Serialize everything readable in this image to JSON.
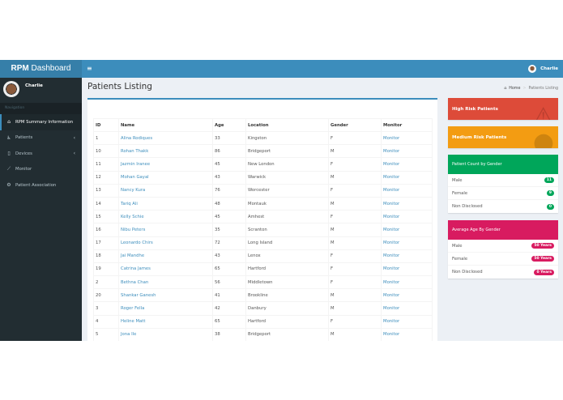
{
  "header": {
    "logo_bold": "RPM",
    "logo_rest": " Dashboard",
    "toggle_icon": "≡",
    "user_name": "Charlie"
  },
  "sidebar": {
    "user_name": "Charlie",
    "nav_header": "Navigation",
    "items": [
      {
        "label": "RPM Summary Information",
        "icon": "home-icon",
        "glyph": "⌂",
        "active": true
      },
      {
        "label": "Patients",
        "icon": "wheelchair-icon",
        "glyph": "♿",
        "chevron": "‹"
      },
      {
        "label": "Devices",
        "icon": "mobile-icon",
        "glyph": "▯",
        "chevron": "‹"
      },
      {
        "label": "Monitor",
        "icon": "line-chart-icon",
        "glyph": "⟋"
      },
      {
        "label": "Patient Association",
        "icon": "gear-icon",
        "glyph": "⚙"
      }
    ]
  },
  "content": {
    "title": "Patients Listing",
    "breadcrumb": {
      "home": "Home",
      "current": "Patients Listing",
      "separator": ">"
    }
  },
  "table": {
    "headers": [
      "ID",
      "Name",
      "Age",
      "Location",
      "Gender",
      "Monitor"
    ],
    "rows": [
      {
        "id": "1",
        "name": "Alina Rodiques",
        "age": "33",
        "location": "Kingston",
        "gender": "F",
        "monitor": "Monitor"
      },
      {
        "id": "10",
        "name": "Rohan Thakk",
        "age": "86",
        "location": "Bridgeport",
        "gender": "M",
        "monitor": "Monitor"
      },
      {
        "id": "11",
        "name": "Jazmin Iranee",
        "age": "45",
        "location": "New London",
        "gender": "F",
        "monitor": "Monitor"
      },
      {
        "id": "12",
        "name": "Mohan Gayal",
        "age": "43",
        "location": "Warwick",
        "gender": "M",
        "monitor": "Monitor"
      },
      {
        "id": "13",
        "name": "Nancy Kura",
        "age": "76",
        "location": "Worcester",
        "gender": "F",
        "monitor": "Monitor"
      },
      {
        "id": "14",
        "name": "Tariq Ali",
        "age": "48",
        "location": "Montauk",
        "gender": "M",
        "monitor": "Monitor"
      },
      {
        "id": "15",
        "name": "Kelly Schie",
        "age": "45",
        "location": "Amhest",
        "gender": "F",
        "monitor": "Monitor"
      },
      {
        "id": "16",
        "name": "Nibu Peters",
        "age": "35",
        "location": "Scranton",
        "gender": "M",
        "monitor": "Monitor"
      },
      {
        "id": "17",
        "name": "Leonardo Chirs",
        "age": "72",
        "location": "Long Island",
        "gender": "M",
        "monitor": "Monitor"
      },
      {
        "id": "18",
        "name": "Jai Mandhe",
        "age": "43",
        "location": "Lenox",
        "gender": "F",
        "monitor": "Monitor"
      },
      {
        "id": "19",
        "name": "Catrina James",
        "age": "65",
        "location": "Hartford",
        "gender": "F",
        "monitor": "Monitor"
      },
      {
        "id": "2",
        "name": "Bethna Chan",
        "age": "56",
        "location": "Middletown",
        "gender": "F",
        "monitor": "Monitor"
      },
      {
        "id": "20",
        "name": "Shankar Ganesh",
        "age": "41",
        "location": "Brookline",
        "gender": "M",
        "monitor": "Monitor"
      },
      {
        "id": "3",
        "name": "Roger Fella",
        "age": "42",
        "location": "Danbury",
        "gender": "M",
        "monitor": "Monitor"
      },
      {
        "id": "4",
        "name": "Heline Matt",
        "age": "65",
        "location": "Hartford",
        "gender": "F",
        "monitor": "Monitor"
      },
      {
        "id": "5",
        "name": "Jona Ile",
        "age": "38",
        "location": "Bridgeport",
        "gender": "M",
        "monitor": "Monitor"
      }
    ]
  },
  "widgets": {
    "high_risk": {
      "label": "High Risk Patients",
      "color": "#dd4b39",
      "icon": "warning-icon",
      "glyph": "⚠"
    },
    "medium_risk": {
      "label": "Medium Risk Patients",
      "color": "#f39c12",
      "icon": "exclamation-circle-icon",
      "glyph": "❗"
    },
    "gender_count": {
      "title": "Patient Count by Gender",
      "color": "#00a65a",
      "rows": [
        {
          "label": "Male",
          "value": "11"
        },
        {
          "label": "Female",
          "value": "9"
        },
        {
          "label": "Non Disclosed",
          "value": "0"
        }
      ]
    },
    "avg_age": {
      "title": "Average Age By Gender",
      "color": "#d81b60",
      "rows": [
        {
          "label": "Male",
          "value": "50 Years"
        },
        {
          "label": "Female",
          "value": "50 Years"
        },
        {
          "label": "Non Disclosed",
          "value": "0 Years"
        }
      ]
    }
  }
}
